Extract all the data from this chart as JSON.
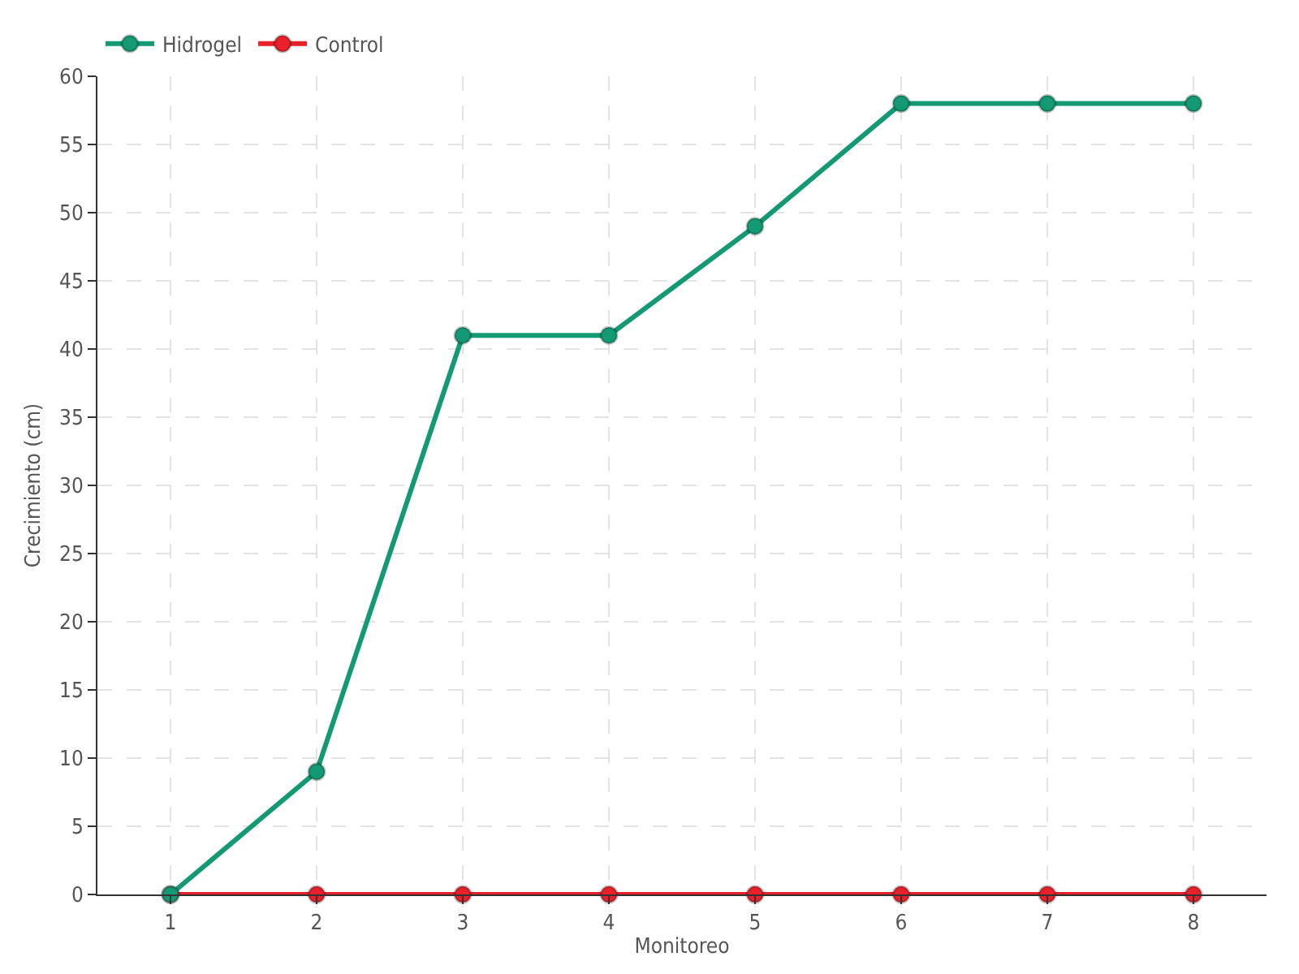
{
  "chart_data": {
    "type": "line",
    "xlabel": "Monitoreo",
    "ylabel": "Crecimiento (cm)",
    "x": [
      1,
      2,
      3,
      4,
      5,
      6,
      7,
      8
    ],
    "series": [
      {
        "name": "Hidrogel",
        "color": "#139a74",
        "values": [
          0,
          9,
          41,
          41,
          49,
          58,
          58,
          58
        ]
      },
      {
        "name": "Control",
        "color": "#e8202a",
        "values": [
          0,
          0,
          0,
          0,
          0,
          0,
          0,
          0
        ]
      }
    ],
    "xlim": [
      0.5,
      8.5
    ],
    "xticks": [
      1,
      2,
      3,
      4,
      5,
      6,
      7,
      8
    ],
    "ylim": [
      0,
      60
    ],
    "yticks": [
      0,
      5,
      10,
      15,
      20,
      25,
      30,
      35,
      40,
      45,
      50,
      55,
      60
    ],
    "grid": true,
    "legend": "top left",
    "marker": "circle",
    "line_style": "solid"
  }
}
